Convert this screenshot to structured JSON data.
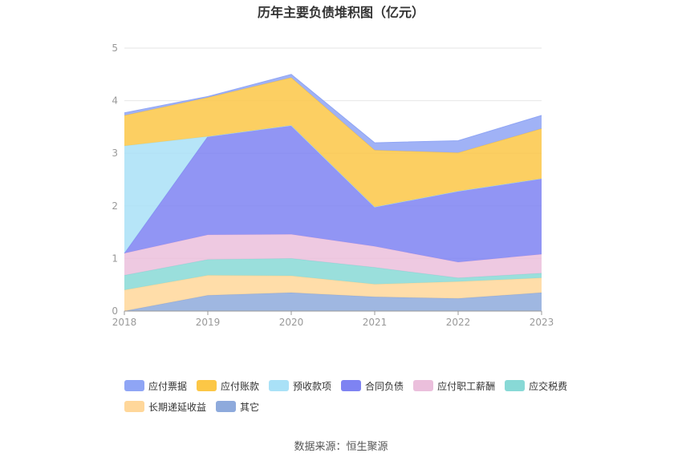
{
  "chart_data": {
    "type": "area",
    "title": "历年主要负债堆积图（亿元）",
    "source": "数据来源：恒生聚源",
    "categories": [
      "2018",
      "2019",
      "2020",
      "2021",
      "2022",
      "2023"
    ],
    "ylim": [
      0,
      5
    ],
    "yticks": [
      "0",
      "1",
      "2",
      "3",
      "4",
      "5"
    ],
    "grid": true,
    "legend_position": "bottom",
    "stacked": true,
    "series": [
      {
        "name": "其它",
        "color": "#8eaadc",
        "values": [
          0.0,
          0.3,
          0.35,
          0.27,
          0.24,
          0.35
        ]
      },
      {
        "name": "长期递延收益",
        "color": "#ffd79a",
        "values": [
          0.4,
          0.38,
          0.32,
          0.24,
          0.32,
          0.28
        ]
      },
      {
        "name": "应交税费",
        "color": "#88d9d6",
        "values": [
          0.28,
          0.3,
          0.33,
          0.32,
          0.07,
          0.09
        ]
      },
      {
        "name": "应付职工薪酬",
        "color": "#ebbfdc",
        "values": [
          0.42,
          0.47,
          0.46,
          0.4,
          0.3,
          0.36
        ]
      },
      {
        "name": "合同负债",
        "color": "#7e83f2",
        "values": [
          0.0,
          1.87,
          2.07,
          0.75,
          1.35,
          1.44
        ]
      },
      {
        "name": "预收款项",
        "color": "#a9e1f7",
        "values": [
          2.04,
          0.0,
          0.0,
          0.0,
          0.0,
          0.0
        ]
      },
      {
        "name": "应付账款",
        "color": "#fcc746",
        "values": [
          0.58,
          0.74,
          0.91,
          1.08,
          0.73,
          0.95
        ]
      },
      {
        "name": "应付票据",
        "color": "#8fa5f5",
        "values": [
          0.05,
          0.02,
          0.06,
          0.14,
          0.23,
          0.25
        ]
      }
    ],
    "legend_order": [
      "应付票据",
      "应付账款",
      "预收款项",
      "合同负债",
      "应付职工薪酬",
      "应交税费",
      "长期递延收益",
      "其它"
    ]
  }
}
